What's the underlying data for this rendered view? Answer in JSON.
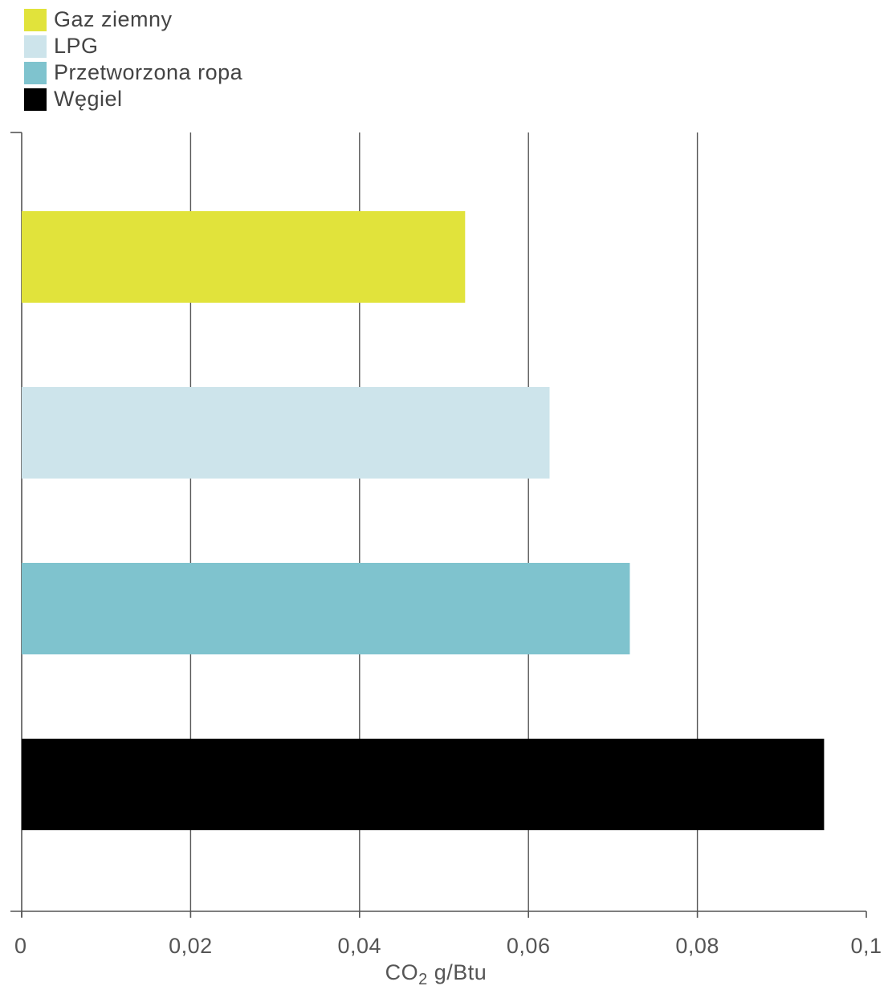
{
  "chart_data": {
    "type": "bar",
    "orientation": "horizontal",
    "categories": [
      "Gaz ziemny",
      "LPG",
      "Przetworzona ropa",
      "Węgiel"
    ],
    "values": [
      0.0525,
      0.0625,
      0.072,
      0.095
    ],
    "colors": [
      "#e1e33b",
      "#cde4eb",
      "#7fc3ce",
      "#000000"
    ],
    "xlim": [
      0,
      0.1
    ],
    "xticks": [
      0,
      0.02,
      0.04,
      0.06,
      0.08,
      0.1
    ],
    "xtick_labels": [
      "0",
      "0,02",
      "0,04",
      "0,06",
      "0,08",
      "0,1"
    ],
    "xlabel_main": "CO",
    "xlabel_sub": "2",
    "xlabel_rest": " g/Btu",
    "grid": "vertical",
    "legend_position": "top-left"
  }
}
